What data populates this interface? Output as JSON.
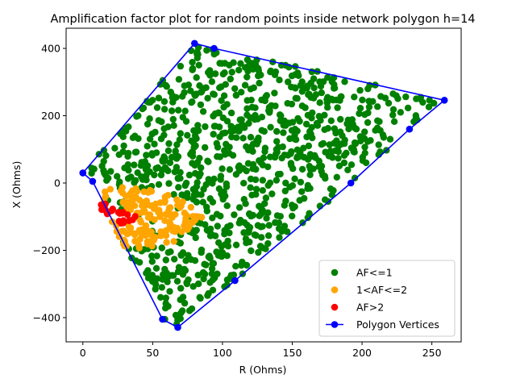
{
  "chart_data": {
    "type": "scatter",
    "title": "Amplification factor plot for random points inside network polygon h=14",
    "xlabel": "R (Ohms)",
    "ylabel": "X (Ohms)",
    "xlim": [
      -12,
      271
    ],
    "ylim": [
      -472,
      460
    ],
    "x_ticks": [
      0,
      50,
      100,
      150,
      200,
      250
    ],
    "y_ticks": [
      -400,
      -200,
      0,
      200,
      400
    ],
    "x_tick_labels": [
      "0",
      "50",
      "100",
      "150",
      "200",
      "250"
    ],
    "y_tick_labels": [
      "−400",
      "−200",
      "0",
      "200",
      "400"
    ],
    "legend_position": "lower right",
    "series": [
      {
        "name": "AF<=1",
        "marker": "circle",
        "color": "#008000",
        "count": 900,
        "region": [
          [
            0,
            30
          ],
          [
            80,
            415
          ],
          [
            259,
            246
          ],
          [
            234,
            160
          ],
          [
            192,
            0
          ],
          [
            109,
            -290
          ],
          [
            68,
            -429
          ],
          [
            57,
            -405
          ],
          [
            7,
            5
          ]
        ]
      },
      {
        "name": "1<AF<=2",
        "marker": "circle",
        "color": "#ffa500",
        "count": 150,
        "region": [
          [
            12,
            -20
          ],
          [
            34,
            -5
          ],
          [
            68,
            -40
          ],
          [
            88,
            -92
          ],
          [
            62,
            -185
          ],
          [
            38,
            -195
          ],
          [
            26,
            -190
          ],
          [
            14,
            -70
          ]
        ]
      },
      {
        "name": "AF>2",
        "marker": "circle",
        "color": "#ff0000",
        "count": 25,
        "region": [
          [
            14,
            -55
          ],
          [
            24,
            -78
          ],
          [
            40,
            -100
          ],
          [
            30,
            -125
          ],
          [
            22,
            -115
          ],
          [
            12,
            -75
          ]
        ]
      },
      {
        "name": "Polygon Vertices",
        "marker": "circle-line",
        "color": "#0000ff",
        "x": [
          0,
          7,
          57,
          68,
          109,
          192,
          234,
          259,
          94,
          80,
          0
        ],
        "y": [
          30,
          5,
          -405,
          -429,
          -290,
          0,
          160,
          246,
          400,
          415,
          30
        ]
      }
    ]
  }
}
